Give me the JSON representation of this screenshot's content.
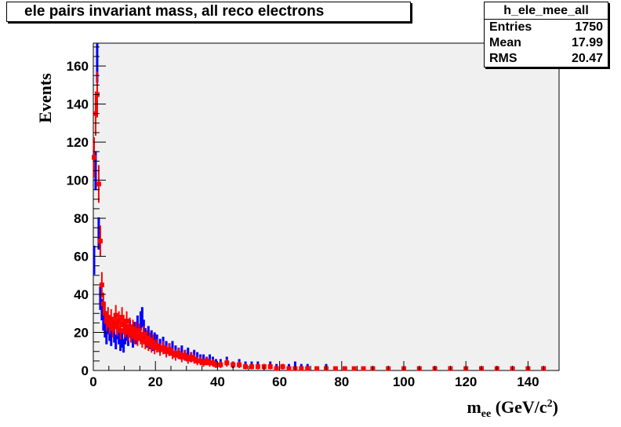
{
  "chart_data": {
    "type": "bar",
    "title": "ele pairs invariant mass, all reco electrons",
    "ylabel": "Events",
    "xlabel_main": "m",
    "xlabel_sub": "ee",
    "xlabel_unit": " (GeV/c",
    "xlabel_sup": "2",
    "xlabel_close": ")",
    "xlim": [
      0,
      150
    ],
    "ylim": [
      0,
      172
    ],
    "x_ticks": [
      0,
      20,
      40,
      60,
      80,
      100,
      120,
      140
    ],
    "y_ticks": [
      0,
      20,
      40,
      60,
      80,
      100,
      120,
      140,
      160
    ],
    "bin_width": 0.5,
    "series": [
      {
        "color": "#0000ff",
        "style": "histogram-errors",
        "bins": [
          [
            0.25,
            58
          ],
          [
            0.75,
            105
          ],
          [
            1.25,
            164
          ],
          [
            1.75,
            72
          ],
          [
            2.25,
            38
          ],
          [
            2.75,
            32
          ],
          [
            3.25,
            26
          ],
          [
            3.75,
            22
          ],
          [
            4.25,
            18
          ],
          [
            4.75,
            24
          ],
          [
            5.25,
            20
          ],
          [
            5.75,
            17
          ],
          [
            6.25,
            22
          ],
          [
            6.75,
            19
          ],
          [
            7.25,
            15
          ],
          [
            7.75,
            21
          ],
          [
            8.25,
            18
          ],
          [
            8.75,
            14
          ],
          [
            9.25,
            16
          ],
          [
            9.75,
            13
          ],
          [
            10.25,
            18
          ],
          [
            10.75,
            20
          ],
          [
            11.25,
            17
          ],
          [
            11.75,
            22
          ],
          [
            12.25,
            19
          ],
          [
            12.75,
            16
          ],
          [
            13.25,
            21
          ],
          [
            13.75,
            18
          ],
          [
            14.25,
            24
          ],
          [
            14.75,
            20
          ],
          [
            15.25,
            26
          ],
          [
            15.75,
            28
          ],
          [
            16.25,
            22
          ],
          [
            16.75,
            18
          ],
          [
            17.25,
            16
          ],
          [
            17.75,
            19
          ],
          [
            18.25,
            15
          ],
          [
            18.75,
            17
          ],
          [
            19.25,
            14
          ],
          [
            19.75,
            16
          ],
          [
            20.5,
            15
          ],
          [
            21.5,
            13
          ],
          [
            22.5,
            14
          ],
          [
            23.5,
            12
          ],
          [
            24.5,
            11
          ],
          [
            25.5,
            12
          ],
          [
            26.5,
            10
          ],
          [
            27.5,
            9
          ],
          [
            28.5,
            10
          ],
          [
            29.5,
            8
          ],
          [
            30.5,
            9
          ],
          [
            31.5,
            7
          ],
          [
            32.5,
            8
          ],
          [
            33.5,
            7
          ],
          [
            34.5,
            6
          ],
          [
            35.5,
            6
          ],
          [
            36.5,
            5
          ],
          [
            37.5,
            6
          ],
          [
            38.5,
            5
          ],
          [
            39.5,
            4
          ],
          [
            41,
            4
          ],
          [
            43,
            5
          ],
          [
            45,
            3
          ],
          [
            47,
            4
          ],
          [
            49,
            3
          ],
          [
            51,
            3
          ],
          [
            53,
            3
          ],
          [
            55,
            2
          ],
          [
            57,
            3
          ],
          [
            59,
            2
          ],
          [
            61,
            2
          ],
          [
            63,
            2
          ],
          [
            65,
            3
          ],
          [
            67,
            2
          ],
          [
            69,
            2
          ],
          [
            72,
            1
          ],
          [
            75,
            2
          ],
          [
            78,
            1
          ],
          [
            81,
            1
          ],
          [
            84,
            1
          ],
          [
            87,
            1
          ],
          [
            90,
            1
          ],
          [
            95,
            1
          ],
          [
            100,
            1
          ],
          [
            105,
            1
          ],
          [
            110,
            1
          ],
          [
            115,
            1
          ],
          [
            120,
            1
          ],
          [
            125,
            1
          ],
          [
            130,
            1
          ],
          [
            135,
            1
          ],
          [
            140,
            1
          ],
          [
            145,
            1
          ]
        ]
      },
      {
        "color": "#ff0000",
        "style": "markers-errors",
        "bins": [
          [
            0.25,
            112
          ],
          [
            0.75,
            135
          ],
          [
            1.25,
            145
          ],
          [
            1.75,
            98
          ],
          [
            2.25,
            68
          ],
          [
            2.75,
            45
          ],
          [
            3.25,
            35
          ],
          [
            3.75,
            30
          ],
          [
            4.25,
            26
          ],
          [
            4.75,
            28
          ],
          [
            5.25,
            24
          ],
          [
            5.75,
            27
          ],
          [
            6.25,
            22
          ],
          [
            6.75,
            25
          ],
          [
            7.25,
            29
          ],
          [
            7.75,
            23
          ],
          [
            8.25,
            26
          ],
          [
            8.75,
            21
          ],
          [
            9.25,
            28
          ],
          [
            9.75,
            24
          ],
          [
            10.25,
            22
          ],
          [
            10.75,
            26
          ],
          [
            11.25,
            20
          ],
          [
            11.75,
            23
          ],
          [
            12.25,
            19
          ],
          [
            12.75,
            22
          ],
          [
            13.25,
            18
          ],
          [
            13.75,
            21
          ],
          [
            14.25,
            17
          ],
          [
            14.75,
            20
          ],
          [
            15.25,
            18
          ],
          [
            15.75,
            16
          ],
          [
            16.25,
            19
          ],
          [
            16.75,
            15
          ],
          [
            17.25,
            17
          ],
          [
            17.75,
            14
          ],
          [
            18.25,
            16
          ],
          [
            18.75,
            13
          ],
          [
            19.25,
            15
          ],
          [
            19.75,
            12
          ],
          [
            20.5,
            13
          ],
          [
            21.5,
            11
          ],
          [
            22.5,
            12
          ],
          [
            23.5,
            10
          ],
          [
            24.5,
            11
          ],
          [
            25.5,
            9
          ],
          [
            26.5,
            8
          ],
          [
            27.5,
            9
          ],
          [
            28.5,
            7
          ],
          [
            29.5,
            8
          ],
          [
            30.5,
            6
          ],
          [
            31.5,
            7
          ],
          [
            32.5,
            6
          ],
          [
            33.5,
            5
          ],
          [
            34.5,
            5
          ],
          [
            35.5,
            4
          ],
          [
            36.5,
            5
          ],
          [
            37.5,
            4
          ],
          [
            38.5,
            4
          ],
          [
            39.5,
            3
          ],
          [
            41,
            3
          ],
          [
            43,
            4
          ],
          [
            45,
            3
          ],
          [
            47,
            3
          ],
          [
            49,
            2
          ],
          [
            51,
            2
          ],
          [
            53,
            2
          ],
          [
            55,
            2
          ],
          [
            57,
            2
          ],
          [
            59,
            1
          ],
          [
            61,
            2
          ],
          [
            63,
            1
          ],
          [
            65,
            1
          ],
          [
            67,
            1
          ],
          [
            69,
            1
          ],
          [
            72,
            1
          ],
          [
            75,
            1
          ],
          [
            78,
            1
          ],
          [
            81,
            1
          ],
          [
            84,
            1
          ],
          [
            87,
            1
          ],
          [
            90,
            1
          ],
          [
            95,
            1
          ],
          [
            100,
            1
          ],
          [
            105,
            1
          ],
          [
            110,
            1
          ],
          [
            115,
            1
          ],
          [
            120,
            1
          ],
          [
            125,
            1
          ],
          [
            130,
            1
          ],
          [
            135,
            1
          ],
          [
            140,
            1
          ],
          [
            145,
            1
          ]
        ]
      }
    ]
  },
  "stats": {
    "name": "h_ele_mee_all",
    "rows": [
      {
        "label": "Entries",
        "value": "1750"
      },
      {
        "label": "Mean",
        "value": "17.99"
      },
      {
        "label": "RMS",
        "value": "20.47"
      }
    ]
  }
}
